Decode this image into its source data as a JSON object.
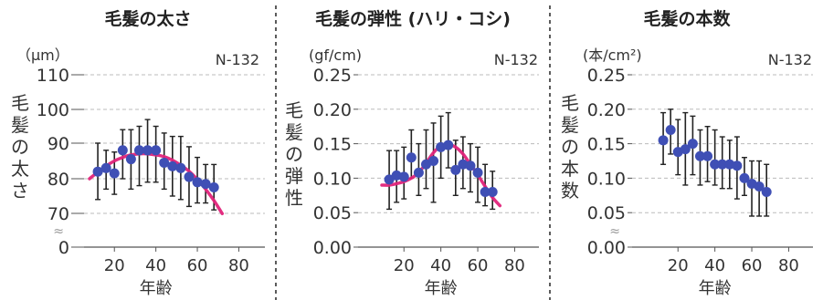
{
  "colors": {
    "point": "#3f4fb5",
    "trend": "#e0237a",
    "error_bar": "#222222",
    "grid": "#bbbbbb",
    "axis": "#555555",
    "divider": "#333333"
  },
  "chart_data": [
    {
      "type": "scatter",
      "title": "毛髪の太さ",
      "unit": "（μm）",
      "sample": "N-132",
      "ylabel": "毛髪の太さ",
      "xlabel": "年齢",
      "y_ticks": [
        {
          "value": 0,
          "label": "0"
        },
        {
          "value": 70,
          "label": "70"
        },
        {
          "value": 80,
          "label": "80"
        },
        {
          "value": 90,
          "label": "90"
        },
        {
          "value": 100,
          "label": "100"
        },
        {
          "value": 110,
          "label": "110"
        }
      ],
      "x_ticks": [
        {
          "value": 20,
          "label": "20"
        },
        {
          "value": 40,
          "label": "40"
        },
        {
          "value": 60,
          "label": "60"
        },
        {
          "value": 80,
          "label": "80"
        }
      ],
      "xlim": [
        0,
        80
      ],
      "axis_break": true,
      "grid": true,
      "x": [
        12,
        16,
        20,
        24,
        28,
        32,
        36,
        40,
        44,
        48,
        52,
        56,
        60,
        64,
        68
      ],
      "y": [
        82,
        83,
        81.5,
        88,
        85.5,
        88,
        88,
        88,
        84.5,
        83.5,
        83,
        80.5,
        79,
        78.5,
        77.5
      ],
      "low": [
        74,
        77,
        75.5,
        80,
        77,
        78,
        79,
        79,
        77,
        75,
        74,
        72,
        73,
        73,
        71
      ],
      "high": [
        90,
        88,
        87.5,
        94,
        94,
        95,
        97,
        95,
        93,
        92,
        92,
        89,
        86,
        84,
        84
      ],
      "trend": {
        "x": [
          8,
          12,
          16,
          20,
          24,
          28,
          32,
          36,
          40,
          44,
          48,
          52,
          56,
          60,
          64,
          68,
          72
        ],
        "y": [
          80,
          81.9,
          83.6,
          85,
          86,
          86.7,
          87,
          87,
          86.7,
          86.2,
          85.2,
          83.8,
          82.1,
          79.8,
          77,
          73.7,
          69.5
        ]
      }
    },
    {
      "type": "scatter",
      "title": "毛髪の弾性 (ハリ・コシ)",
      "unit": "(gf/cm)",
      "sample": "N-132",
      "ylabel": "毛髪の弾性",
      "xlabel": "年齢",
      "y_ticks": [
        {
          "value": 0.0,
          "label": "0.00"
        },
        {
          "value": 0.05,
          "label": "0.05"
        },
        {
          "value": 0.1,
          "label": "0.10"
        },
        {
          "value": 0.15,
          "label": "0.15"
        },
        {
          "value": 0.2,
          "label": "0.20"
        },
        {
          "value": 0.25,
          "label": "0.25"
        }
      ],
      "x_ticks": [
        {
          "value": 20,
          "label": "20"
        },
        {
          "value": 40,
          "label": "40"
        },
        {
          "value": 60,
          "label": "60"
        },
        {
          "value": 80,
          "label": "80"
        }
      ],
      "xlim": [
        0,
        80
      ],
      "ylim": [
        0,
        0.25
      ],
      "axis_break": false,
      "grid": true,
      "x": [
        12,
        16,
        20,
        24,
        28,
        32,
        36,
        40,
        44,
        48,
        52,
        56,
        60,
        64,
        68
      ],
      "y": [
        0.098,
        0.104,
        0.102,
        0.13,
        0.108,
        0.12,
        0.125,
        0.145,
        0.148,
        0.112,
        0.12,
        0.118,
        0.108,
        0.08,
        0.08
      ],
      "low": [
        0.055,
        0.065,
        0.07,
        0.1,
        0.075,
        0.085,
        0.065,
        0.1,
        0.115,
        0.075,
        0.085,
        0.08,
        0.065,
        0.06,
        0.055
      ],
      "high": [
        0.14,
        0.14,
        0.145,
        0.17,
        0.15,
        0.17,
        0.18,
        0.19,
        0.195,
        0.155,
        0.16,
        0.15,
        0.145,
        0.12,
        0.11
      ],
      "trend": {
        "x": [
          8,
          12,
          16,
          20,
          24,
          28,
          32,
          36,
          40,
          44,
          48,
          52,
          56,
          60,
          64,
          68,
          72
        ],
        "y": [
          0.09,
          0.09,
          0.092,
          0.095,
          0.1,
          0.108,
          0.122,
          0.137,
          0.147,
          0.149,
          0.145,
          0.135,
          0.12,
          0.105,
          0.088,
          0.072,
          0.06
        ]
      }
    },
    {
      "type": "scatter",
      "title": "毛髪の本数",
      "unit": "(本/cm²)",
      "sample": "N-132",
      "ylabel": "毛髪の本数",
      "xlabel": "年齢",
      "y_ticks": [
        {
          "value": 0.0,
          "label": "0.00"
        },
        {
          "value": 0.05,
          "label": "0.05"
        },
        {
          "value": 0.1,
          "label": "0.10"
        },
        {
          "value": 0.15,
          "label": "0.15"
        },
        {
          "value": 0.2,
          "label": "0.20"
        },
        {
          "value": 0.25,
          "label": "0.25"
        }
      ],
      "x_ticks": [
        {
          "value": 20,
          "label": "20"
        },
        {
          "value": 40,
          "label": "40"
        },
        {
          "value": 60,
          "label": "60"
        },
        {
          "value": 80,
          "label": "80"
        }
      ],
      "xlim": [
        0,
        80
      ],
      "ylim": [
        0,
        0.25
      ],
      "axis_break": true,
      "grid": true,
      "x": [
        12,
        16,
        20,
        24,
        28,
        32,
        36,
        40,
        44,
        48,
        52,
        56,
        60,
        64,
        68
      ],
      "y": [
        0.155,
        0.17,
        0.138,
        0.142,
        0.15,
        0.132,
        0.132,
        0.12,
        0.12,
        0.12,
        0.118,
        0.1,
        0.092,
        0.088,
        0.08
      ],
      "low": [
        0.12,
        0.135,
        0.105,
        0.09,
        0.105,
        0.09,
        0.095,
        0.09,
        0.085,
        0.085,
        0.07,
        0.075,
        0.045,
        0.045,
        0.045
      ],
      "high": [
        0.195,
        0.2,
        0.185,
        0.195,
        0.19,
        0.17,
        0.175,
        0.17,
        0.16,
        0.155,
        0.16,
        0.13,
        0.125,
        0.125,
        0.12
      ]
    }
  ]
}
